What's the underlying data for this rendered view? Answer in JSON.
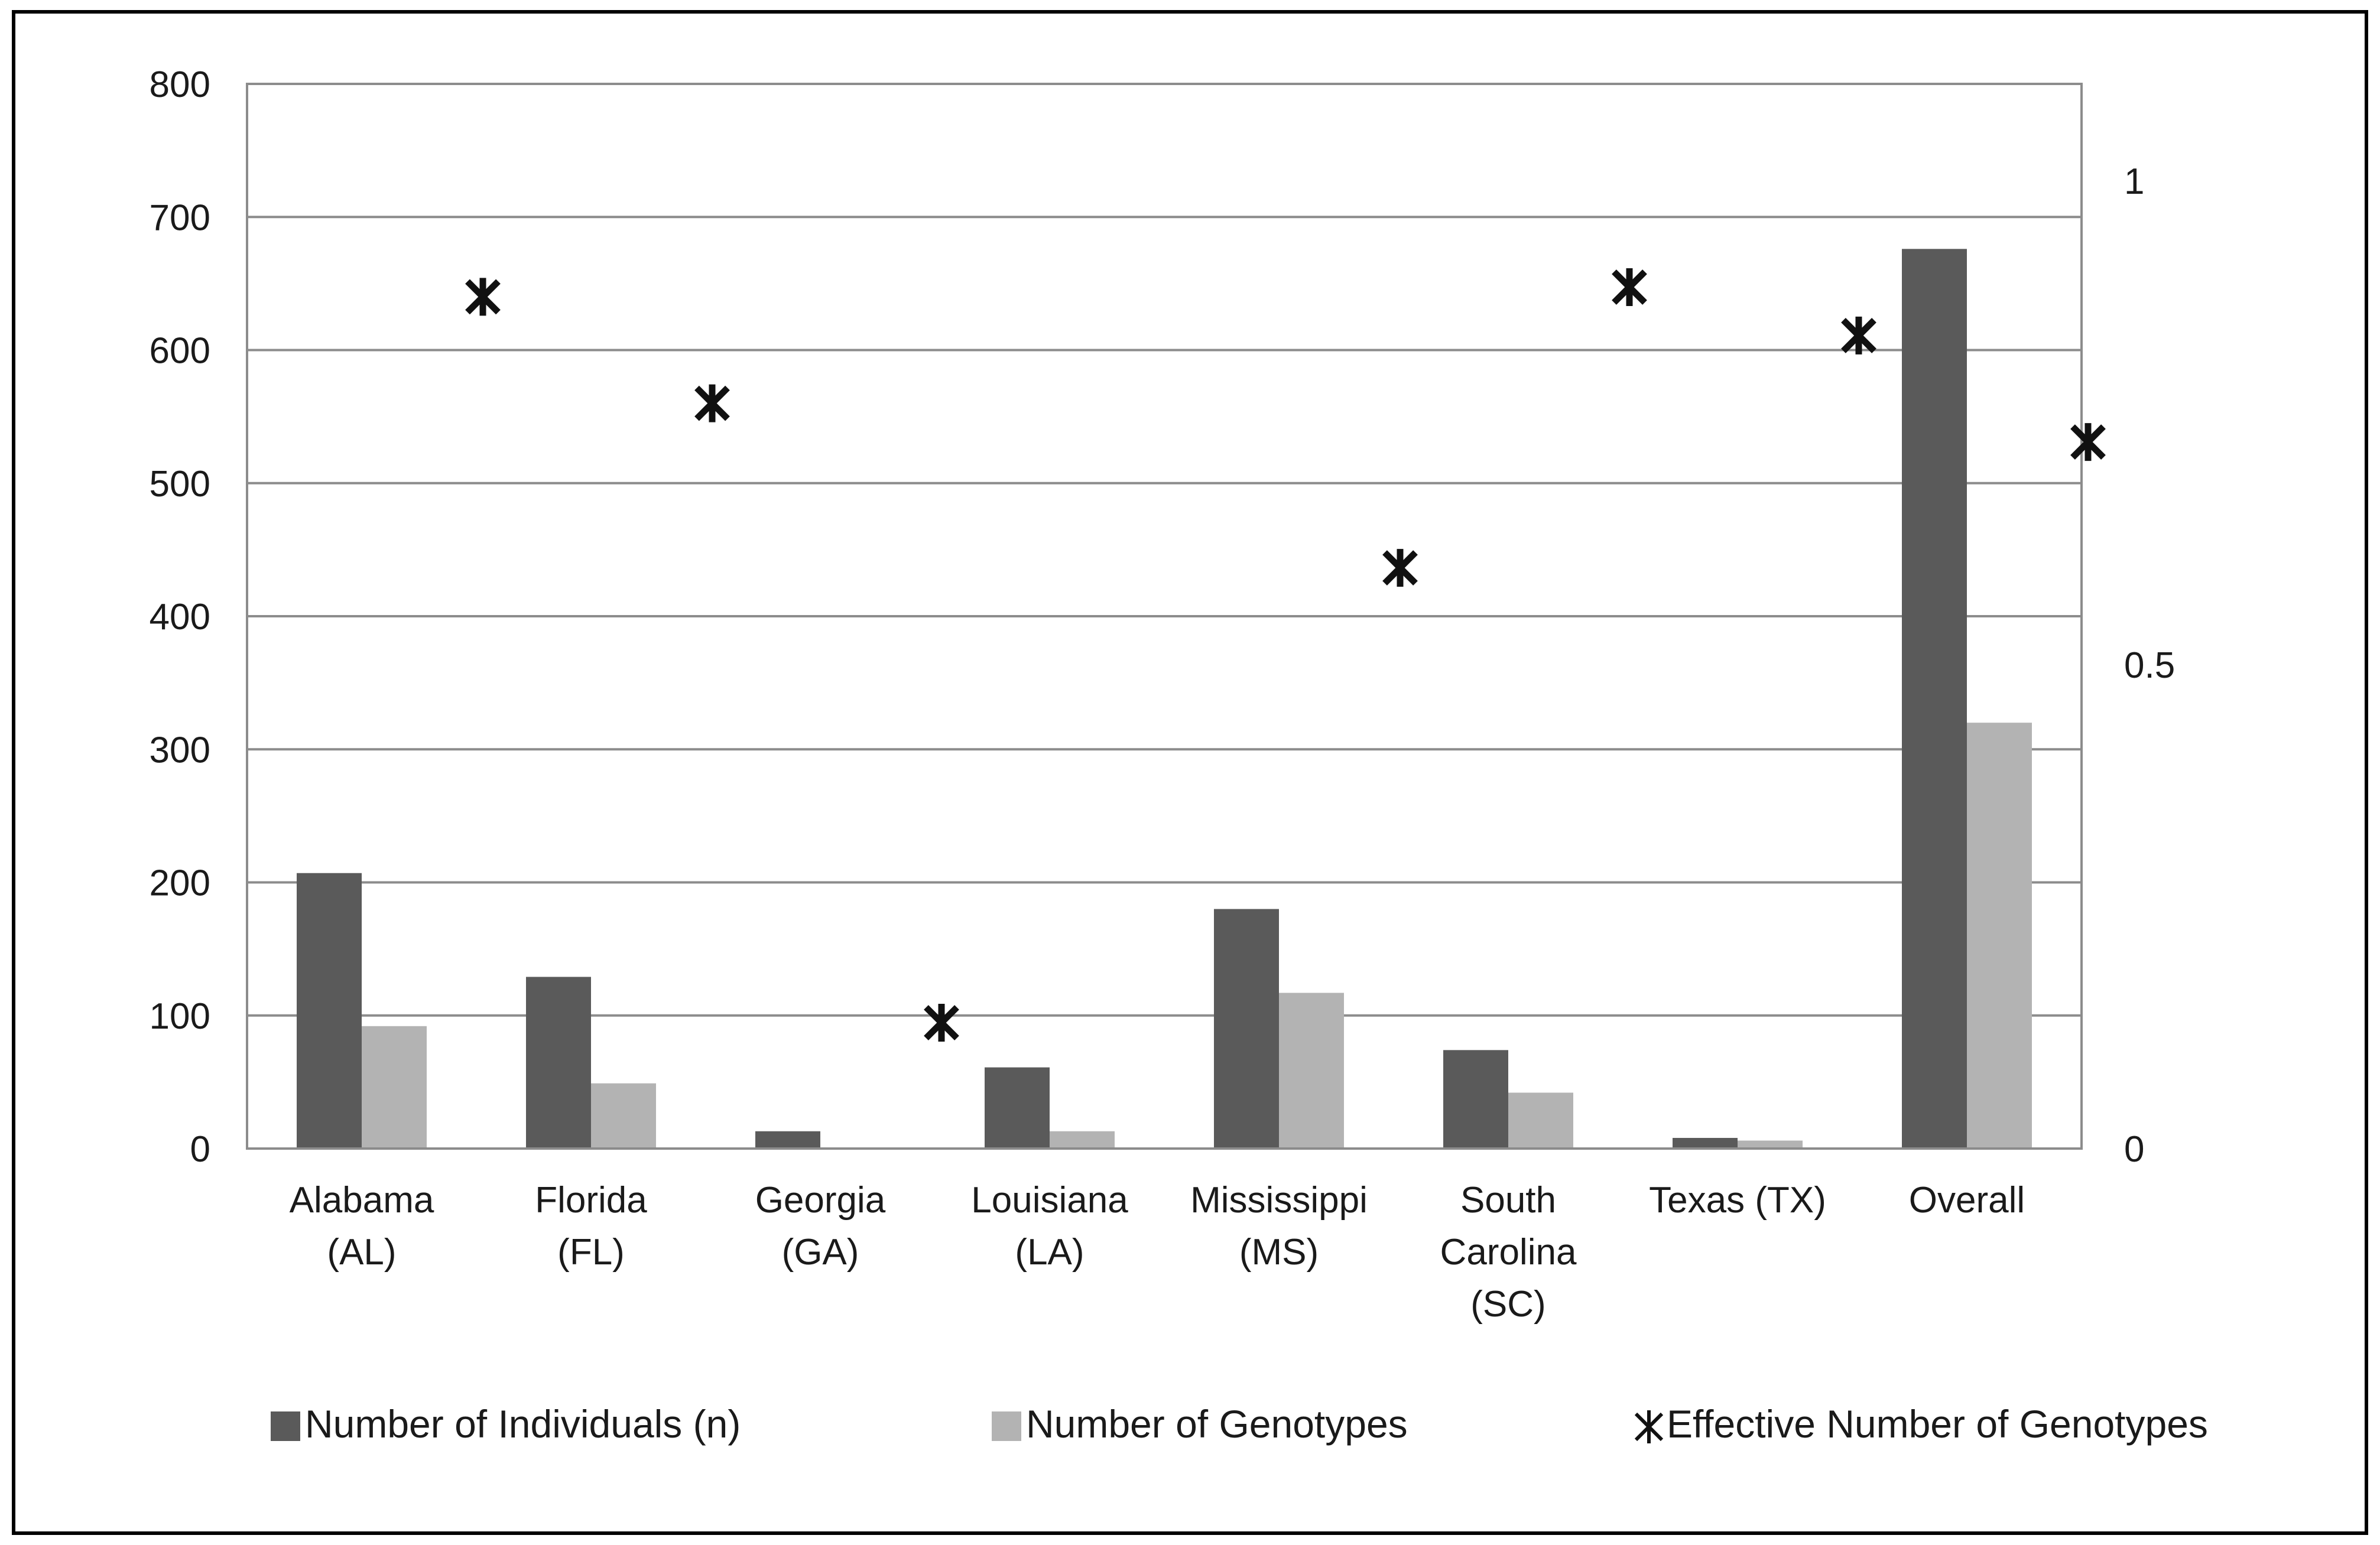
{
  "chart_data": {
    "type": "bar",
    "categories": [
      [
        "Alabama",
        "(AL)"
      ],
      [
        "Florida",
        "(FL)"
      ],
      [
        "Georgia",
        "(GA)"
      ],
      [
        "Louisiana",
        "(LA)"
      ],
      [
        "Mississippi",
        "(MS)"
      ],
      [
        "South",
        "Carolina",
        "(SC)"
      ],
      [
        "Texas (TX)"
      ],
      [
        "Overall"
      ]
    ],
    "series": [
      {
        "name": "Number of Individuals (n)",
        "kind": "bar",
        "axis": "left",
        "color": "#5a5a5a",
        "values": [
          207,
          129,
          13,
          61,
          180,
          74,
          8,
          676
        ]
      },
      {
        "name": "Number of Genotypes",
        "kind": "bar",
        "axis": "left",
        "color": "#b3b3b3",
        "values": [
          92,
          49,
          0,
          13,
          117,
          42,
          6,
          320
        ]
      },
      {
        "name": "Effective Number of Genotypes",
        "kind": "marker",
        "axis": "right",
        "marker_glyph": "Ж",
        "color": "#111111",
        "values": [
          0.88,
          0.77,
          0.13,
          null,
          0.6,
          0.89,
          0.84,
          0.73
        ]
      }
    ],
    "left_axis": {
      "min": 0,
      "max": 800,
      "ticks": [
        0,
        100,
        200,
        300,
        400,
        500,
        600,
        700,
        800
      ]
    },
    "right_axis": {
      "min": 0,
      "max": 1.1,
      "ticks": [
        {
          "value": 0,
          "label": "0"
        },
        {
          "value": 0.5,
          "label": "0.5"
        },
        {
          "value": 1,
          "label": "1"
        }
      ]
    },
    "grid": true,
    "legend_position": "bottom",
    "colors": {
      "gridline": "#8c8c8c",
      "plot_border": "#8c8c8c",
      "frame": "#000000"
    }
  }
}
